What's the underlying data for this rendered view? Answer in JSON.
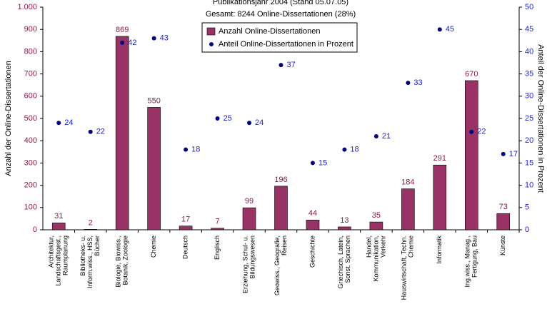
{
  "chart_data": {
    "type": "bar",
    "title": "Publikationsjahr 2004 (Stand 05.07.05)",
    "subtitle": "Gesamt: 8244 Online-Dissertationen (28%)",
    "ylabel": "Anzahl der Online-Dissertationen",
    "y2label": "Anteil der Online-Dissertationen in Prozent",
    "categories": [
      [
        "Architektur,",
        "Landschaftsgest.,",
        "Raumplanung"
      ],
      [
        "Bibliotheks- u.",
        "Inform.wiss., HSS,",
        "Bücher"
      ],
      [
        "Biologie, Biowiss.,",
        "Botanik, Zoologie"
      ],
      [
        "Chemie"
      ],
      [
        "Deutsch"
      ],
      [
        "Englisch"
      ],
      [
        "Erziehung, Schul- u.",
        "Bildungswesen"
      ],
      [
        "Geowiss., Geografie,",
        "Reisen"
      ],
      [
        "Geschichte"
      ],
      [
        "Griechisch, Latein,",
        "Sonst. Sprachen"
      ],
      [
        "Handel,",
        "Kommunikation,",
        "Verkehr"
      ],
      [
        "Hauswirtschaft, Techn.",
        "Chemie"
      ],
      [
        "Informatik"
      ],
      [
        "Ing.wiss., Manag.,",
        "Fertigung, Bau"
      ],
      [
        "Künste"
      ]
    ],
    "series": [
      {
        "name": "Anzahl  Online-Dissertationen",
        "color": "#993366",
        "values": [
          31,
          2,
          869,
          550,
          17,
          7,
          99,
          196,
          44,
          13,
          35,
          184,
          291,
          670,
          73
        ]
      },
      {
        "name": "Anteil Online-Dissertationen in Prozent",
        "color": "#000080",
        "axis": "y2",
        "values": [
          24,
          22,
          42,
          43,
          18,
          25,
          24,
          37,
          15,
          18,
          21,
          33,
          45,
          22,
          17
        ]
      }
    ],
    "ylim": [
      0,
      1000
    ],
    "yticks": [
      0,
      100,
      200,
      300,
      400,
      500,
      600,
      700,
      800,
      900,
      {
        "value": 1000,
        "label": "1.000"
      }
    ],
    "y2lim": [
      0,
      50
    ],
    "y2ticks": [
      0,
      5,
      10,
      15,
      20,
      25,
      30,
      35,
      40,
      45,
      50
    ]
  }
}
